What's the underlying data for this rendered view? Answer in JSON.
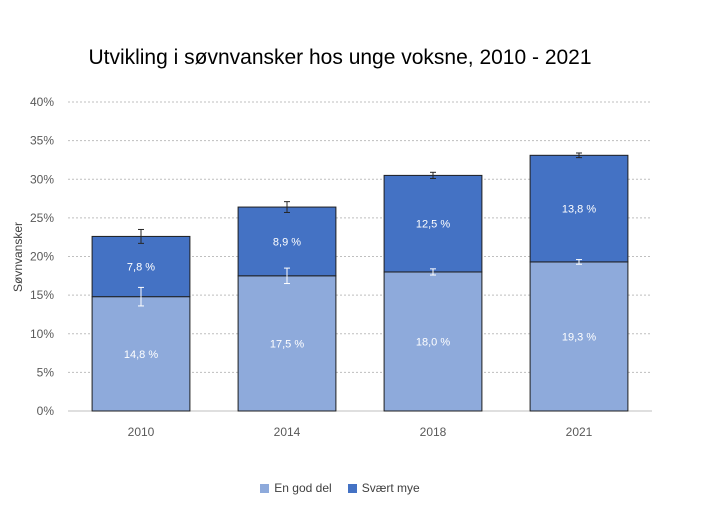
{
  "chart_data": {
    "type": "bar",
    "stacked": true,
    "title": "Utvikling i søvnvansker hos unge voksne, 2010 - 2021",
    "ylabel": "Søvnvansker",
    "xlabel": "",
    "ylim": [
      0,
      40
    ],
    "yticks": [
      "0%",
      "5%",
      "10%",
      "15%",
      "20%",
      "25%",
      "30%",
      "35%",
      "40%"
    ],
    "grid": true,
    "legend_position": "bottom",
    "categories": [
      "2010",
      "2014",
      "2018",
      "2021"
    ],
    "series": [
      {
        "name": "En god del",
        "color": "#8eaadb",
        "values": [
          14.8,
          17.5,
          18.0,
          19.3
        ],
        "labels": [
          "14,8 %",
          "17,5 %",
          "18,0 %",
          "19,3 %"
        ],
        "error": [
          1.2,
          1.0,
          0.4,
          0.3
        ]
      },
      {
        "name": "Svært mye",
        "color": "#4472c4",
        "values": [
          7.8,
          8.9,
          12.5,
          13.8
        ],
        "labels": [
          "7,8 %",
          "8,9 %",
          "12,5 %",
          "13,8 %"
        ],
        "error": [
          0.9,
          0.7,
          0.4,
          0.3
        ]
      }
    ]
  }
}
